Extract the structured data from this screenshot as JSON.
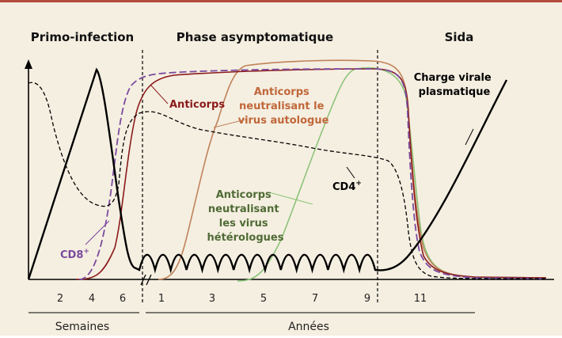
{
  "chart_data": {
    "type": "line",
    "phases": [
      "Primo-infection",
      "Phase asymptomatique",
      "Sida"
    ],
    "x_ticks": {
      "weeks": [
        "2",
        "4",
        "6"
      ],
      "years": [
        "1",
        "3",
        "5",
        "7",
        "9",
        "11"
      ]
    },
    "x_units": {
      "weeks": "Semaines",
      "years": "Années"
    },
    "series": [
      {
        "name": "Charge virale plasmatique",
        "color": "#000000",
        "style": "solid-thick"
      },
      {
        "name": "CD4+",
        "color": "#000000",
        "style": "dashed"
      },
      {
        "name": "CD8+",
        "color": "#7b4a9e",
        "style": "dashed"
      },
      {
        "name": "Anticorps",
        "color": "#8b1a1a",
        "style": "solid"
      },
      {
        "name": "Anticorps neutralisant le virus autologue",
        "color": "#c0825a",
        "style": "solid"
      },
      {
        "name": "Anticorps neutralisant les virus hétérologues",
        "color": "#8cc47a",
        "style": "solid"
      }
    ],
    "labels": {
      "charge": [
        "Charge virale",
        "plasmatique"
      ],
      "anticorps": "Anticorps",
      "autologue": [
        "Anticorps",
        "neutralisant le",
        "virus autologue"
      ],
      "heterologues": [
        "Anticorps",
        "neutralisant",
        "les virus",
        "hétérologues"
      ],
      "cd4": "CD4",
      "cd8": "CD8",
      "superscript": "+"
    },
    "colors": {
      "frame_top": "#b24a3e",
      "background": "#f5efe1",
      "anticorps_label": "#8b1a1a",
      "autologue_label": "#c0673a",
      "heterologues_label": "#4f6b35",
      "cd8_label": "#7b4a9e"
    },
    "grid": false,
    "y_axis_labels": false
  }
}
